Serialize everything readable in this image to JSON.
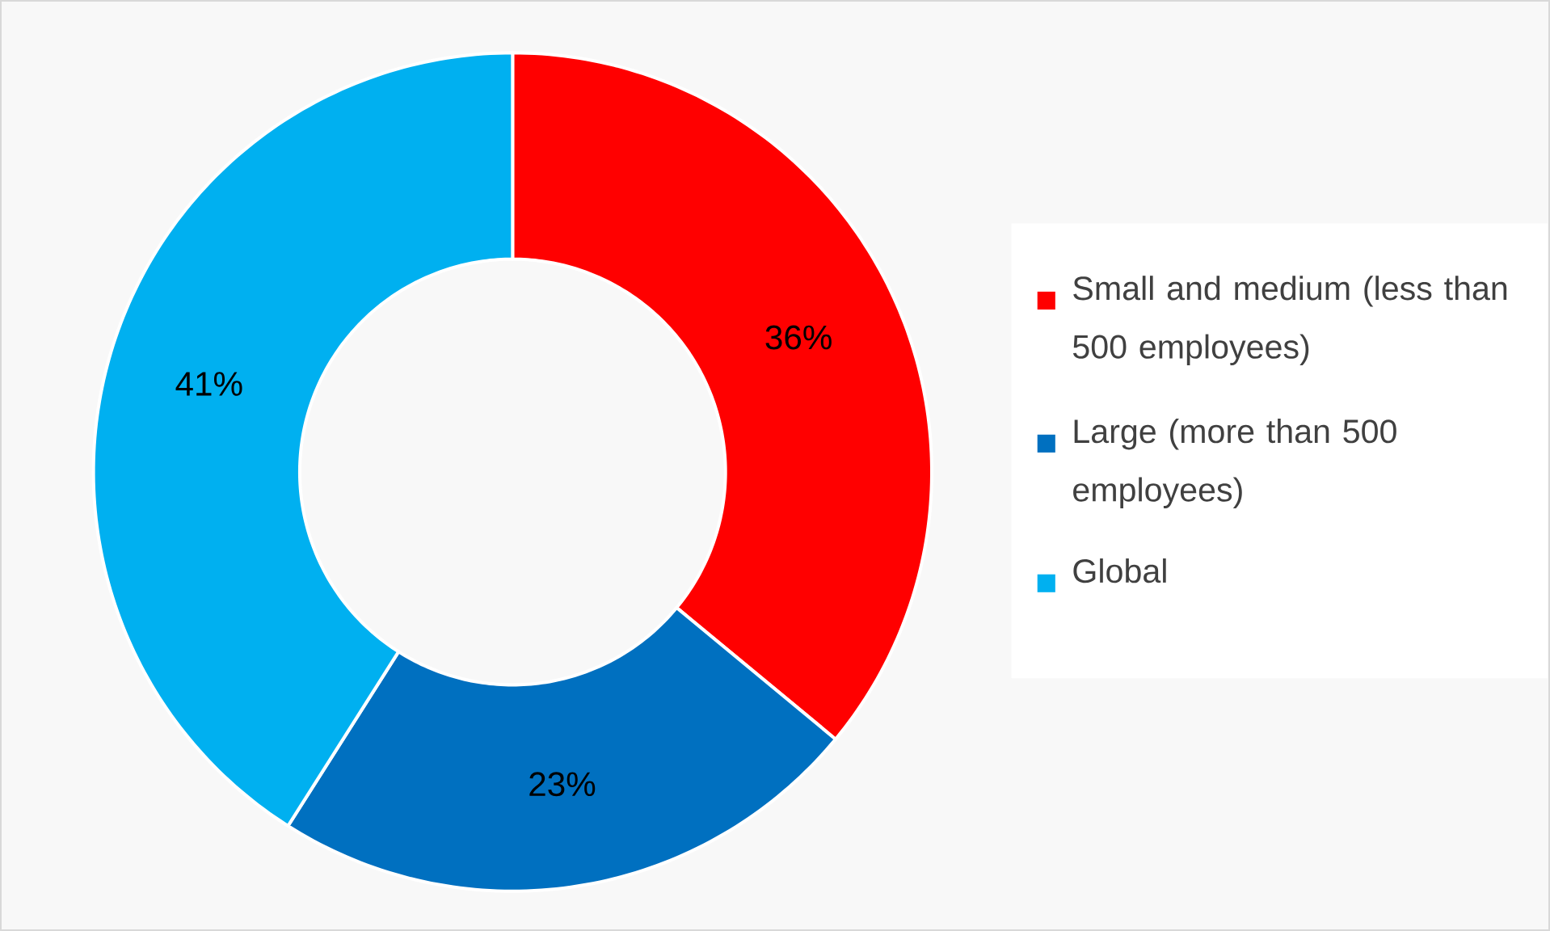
{
  "chart_data": {
    "type": "donut",
    "categories": [
      "Small and medium (less than 500 employees)",
      "Large (more than 500 employees)",
      "Global"
    ],
    "values": [
      36,
      23,
      41
    ],
    "colors": [
      "#ff0000",
      "#0070c0",
      "#00b0f0"
    ],
    "value_labels": [
      "36%",
      "23%",
      "41%"
    ],
    "legend": "right"
  }
}
